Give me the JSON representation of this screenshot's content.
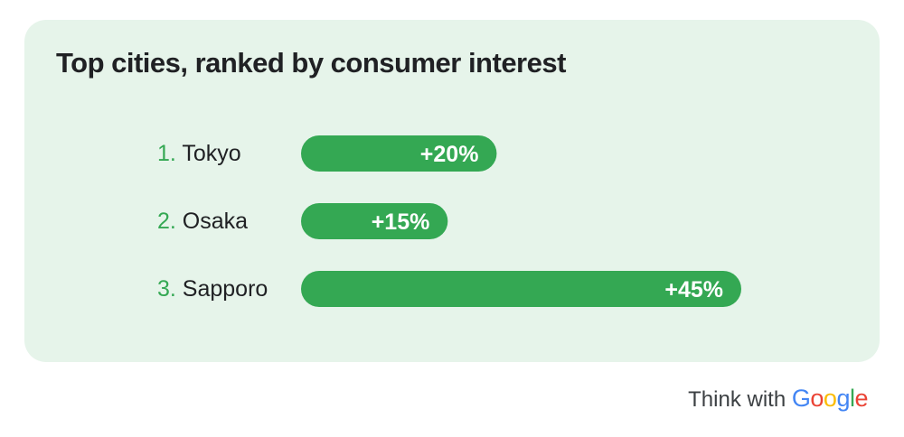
{
  "chart_data": {
    "type": "bar",
    "orientation": "horizontal",
    "title": "Top cities, ranked by consumer interest",
    "categories": [
      "Tokyo",
      "Osaka",
      "Sapporo"
    ],
    "ranks": [
      "1.",
      "2.",
      "3."
    ],
    "values": [
      20,
      15,
      45
    ],
    "value_labels": [
      "+20%",
      "+15%",
      "+45%"
    ],
    "unit": "%",
    "xlim": [
      0,
      45
    ],
    "grid": false,
    "legend": "none"
  },
  "colors": {
    "bar": "#34a853",
    "rank": "#34a853",
    "card_background": "#e6f4ea",
    "text": "#202124",
    "google_blue": "#4285f4",
    "google_red": "#ea4335",
    "google_yellow": "#fbbc05",
    "google_green": "#34a853"
  },
  "branding": {
    "prefix": "Think with",
    "brand": "Google"
  }
}
